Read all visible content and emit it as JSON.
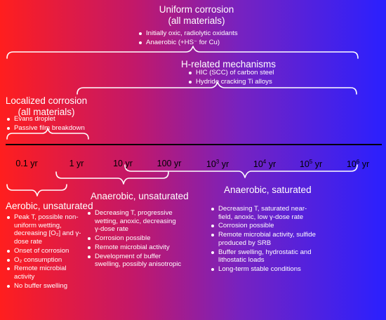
{
  "uniform": {
    "title1": "Uniform corrosion",
    "title2": "(all materials)",
    "bullets": [
      "Initially oxic, radiolytic oxidants",
      "Anaerobic (+HS⁻ for Cu)"
    ]
  },
  "hydrogen": {
    "title": "H-related mechanisms",
    "bullets": [
      "HIC (SCC) of carbon steel",
      "Hydride cracking Ti alloys"
    ]
  },
  "localized": {
    "title1": "Localized corrosion",
    "title2": "(all materials)",
    "bullets": [
      "Evans droplet",
      "Passive film breakdown"
    ]
  },
  "timeline": {
    "ticks": [
      {
        "label": "0.1 yr"
      },
      {
        "label": "1 yr"
      },
      {
        "label": "10 yr"
      },
      {
        "label": "100 yr"
      },
      {
        "base": "10",
        "exp": "3",
        "unit": " yr"
      },
      {
        "base": "10",
        "exp": "4",
        "unit": " yr"
      },
      {
        "base": "10",
        "exp": "5",
        "unit": " yr"
      },
      {
        "base": "10",
        "exp": "6",
        "unit": " yr"
      }
    ]
  },
  "aerobic": {
    "title": "Aerobic, unsaturated",
    "bullets": [
      "Peak T, possible non-uniform wetting, decreasing [O₂] and γ-dose rate",
      "Onset of corrosion",
      "O₂ consumption",
      "Remote microbial activity",
      "No buffer swelling"
    ]
  },
  "anaerobic_unsat": {
    "title": "Anaerobic, unsaturated",
    "bullets": [
      "Decreasing T, progressive wetting, anoxic, decreasing γ-dose rate",
      "Corrosion possible",
      "Remote microbial activity",
      "Development of buffer swelling, possibly anisotropic"
    ]
  },
  "anaerobic_sat": {
    "title": "Anaerobic, saturated",
    "bullets": [
      "Decreasing T, saturated near-field, anoxic, low γ-dose rate",
      "Corrosion possible",
      "Remote microbial activity, sulfide produced by SRB",
      "Buffer swelling, hydrostatic and lithostatic loads",
      "Long-term stable conditions"
    ]
  }
}
